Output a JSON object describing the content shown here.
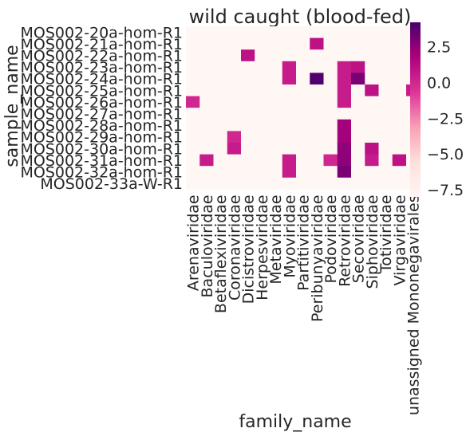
{
  "chart_data": {
    "type": "heatmap",
    "title": "wild caught (blood-fed)",
    "xlabel": "family_name",
    "ylabel": "sample_name",
    "x_categories": [
      "Arenaviridae",
      "Baculoviridae",
      "Betaflexiviridae",
      "Coronaviridae",
      "Dicistroviridae",
      "Herpesviridae",
      "Metaviridae",
      "Myoviridae",
      "Partitiviridae",
      "Peribunyaviridae",
      "Podoviridae",
      "Retroviridae",
      "Secoviridae",
      "Siphoviridae",
      "Totiviridae",
      "Virgaviridae",
      "unassigned Mononegavirales"
    ],
    "y_categories": [
      "MOS002-20a-hom-R1",
      "MOS002-21a-hom-R1",
      "MOS002-22a-hom-R1",
      "MOS002-23a-hom-R1",
      "MOS002-24a-hom-R1",
      "MOS002-25a-hom-R1",
      "MOS002-26a-hom-R1",
      "MOS002-27a-hom-R1",
      "MOS002-28a-hom-R1",
      "MOS002-29a-hom-R1",
      "MOS002-30a-hom-R1",
      "MOS002-31a-hom-R1",
      "MOS002-32a-hom-R1",
      "MOS002-33a-W-R1"
    ],
    "vmin": -8.0,
    "vmax": 4.2,
    "background_value": -8.0,
    "colorbar_ticks": [
      2.5,
      0.0,
      -2.5,
      -5.0,
      -7.5
    ],
    "colorbar_tick_labels": [
      "2.5",
      "0.0",
      "−2.5",
      "−5.0",
      "−7.5"
    ],
    "cells": [
      {
        "row": 1,
        "col": 9,
        "value": 1.0
      },
      {
        "row": 2,
        "col": 4,
        "value": 1.0
      },
      {
        "row": 3,
        "col": 7,
        "value": 0.5
      },
      {
        "row": 3,
        "col": 11,
        "value": 0.5
      },
      {
        "row": 3,
        "col": 12,
        "value": 1.0
      },
      {
        "row": 4,
        "col": 7,
        "value": 0.5
      },
      {
        "row": 4,
        "col": 9,
        "value": 4.0
      },
      {
        "row": 4,
        "col": 11,
        "value": 0.5
      },
      {
        "row": 4,
        "col": 12,
        "value": 3.0
      },
      {
        "row": 5,
        "col": 11,
        "value": 0.5
      },
      {
        "row": 5,
        "col": 13,
        "value": 1.0
      },
      {
        "row": 5,
        "col": 16,
        "value": 0.5
      },
      {
        "row": 6,
        "col": 0,
        "value": 0.0
      },
      {
        "row": 6,
        "col": 11,
        "value": 0.5
      },
      {
        "row": 8,
        "col": 11,
        "value": 2.0
      },
      {
        "row": 9,
        "col": 3,
        "value": 0.0
      },
      {
        "row": 9,
        "col": 11,
        "value": 2.0
      },
      {
        "row": 10,
        "col": 3,
        "value": 0.5
      },
      {
        "row": 10,
        "col": 11,
        "value": 2.5
      },
      {
        "row": 10,
        "col": 13,
        "value": 1.0
      },
      {
        "row": 11,
        "col": 1,
        "value": 0.5
      },
      {
        "row": 11,
        "col": 7,
        "value": 0.5
      },
      {
        "row": 11,
        "col": 10,
        "value": 0.0
      },
      {
        "row": 11,
        "col": 11,
        "value": 2.5
      },
      {
        "row": 11,
        "col": 13,
        "value": 0.5
      },
      {
        "row": 11,
        "col": 15,
        "value": 1.0
      },
      {
        "row": 12,
        "col": 7,
        "value": 0.5
      },
      {
        "row": 12,
        "col": 11,
        "value": 3.0
      }
    ]
  }
}
